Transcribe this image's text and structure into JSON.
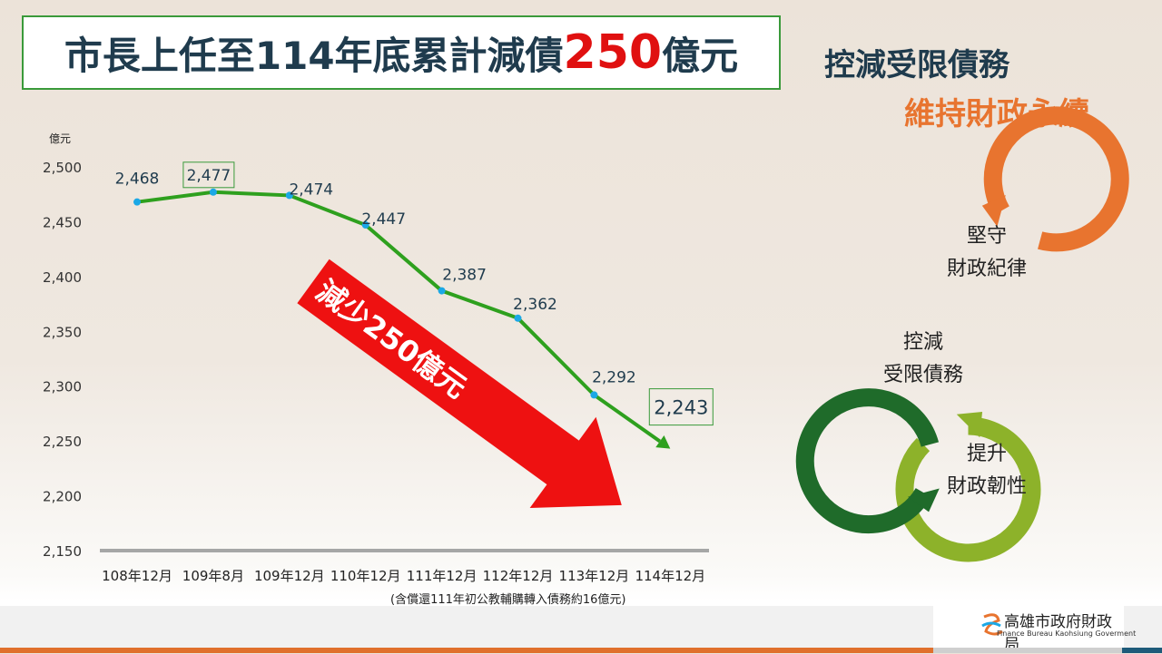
{
  "title": {
    "pre": "市長上任至114年底累計減債",
    "highlight": "250",
    "post": "億元"
  },
  "slogan": {
    "line1": "控減受限債務",
    "line2": "維持財政永續"
  },
  "cycle": [
    {
      "l1": "堅守",
      "l2": "財政紀律",
      "color": "#e8742f"
    },
    {
      "l1": "控減",
      "l2": "受限債務",
      "color": "#8db22a"
    },
    {
      "l1": "提升",
      "l2": "財政韌性",
      "color": "#1f6b2a"
    }
  ],
  "arrow_label": "減少250億元",
  "footnote": "(含償還111年初公教輔購轉入債務約16億元)",
  "logo": {
    "name": "高雄市政府財政局",
    "sub": "Finance Bureau Kaohsiung Goverment"
  },
  "chart_data": {
    "type": "line",
    "ylabel": "億元",
    "ylim": [
      2150,
      2500
    ],
    "yticks": [
      "2,150",
      "2,200",
      "2,250",
      "2,300",
      "2,350",
      "2,400",
      "2,450",
      "2,500"
    ],
    "categories": [
      "108年12月",
      "109年8月",
      "109年12月",
      "110年12月",
      "111年12月",
      "112年12月",
      "113年12月",
      "114年12月"
    ],
    "values": [
      2468,
      2477,
      2474,
      2447,
      2387,
      2362,
      2292,
      2243
    ],
    "labels": [
      "2,468",
      "2,477",
      "2,474",
      "2,447",
      "2,387",
      "2,362",
      "2,292",
      "2,243"
    ],
    "boxed": [
      1,
      7
    ],
    "line_color": "#2ea01e",
    "marker_color": "#1ba8e6",
    "grid": false
  }
}
